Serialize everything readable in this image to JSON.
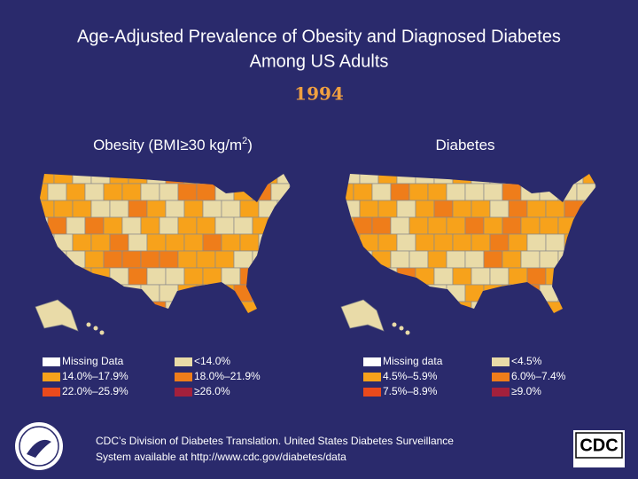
{
  "title_lines": [
    "Age-Adjusted Prevalence of Obesity and Diagnosed Diabetes",
    "Among US Adults"
  ],
  "year": "1994",
  "maps": [
    {
      "title_parts": [
        "Obesity (BMI≥30 kg/m",
        "2",
        ")"
      ],
      "legend": [
        {
          "label": "Missing Data",
          "color": "#ffffff"
        },
        {
          "label": "<14.0%",
          "color": "#e9dba8"
        },
        {
          "label": "14.0%–17.9%",
          "color": "#f7a21b"
        },
        {
          "label": "18.0%–21.9%",
          "color": "#ef7d1a"
        },
        {
          "label": "22.0%–25.9%",
          "color": "#ea4a1c"
        },
        {
          "label": "≥26.0%",
          "color": "#a3203c"
        }
      ]
    },
    {
      "title_parts": [
        "Diabetes"
      ],
      "legend": [
        {
          "label": "Missing data",
          "color": "#ffffff"
        },
        {
          "label": "<4.5%",
          "color": "#e9dba8"
        },
        {
          "label": "4.5%–5.9%",
          "color": "#f7a21b"
        },
        {
          "label": "6.0%–7.4%",
          "color": "#ef7d1a"
        },
        {
          "label": "7.5%–8.9%",
          "color": "#ea4a1c"
        },
        {
          "label": "≥9.0%",
          "color": "#a3203c"
        }
      ]
    }
  ],
  "footer_lines": [
    "CDC’s Division of Diabetes Translation. United States Diabetes Surveillance",
    "System available at http://www.cdc.gov/diabetes/data"
  ],
  "logo_text": "CDC"
}
